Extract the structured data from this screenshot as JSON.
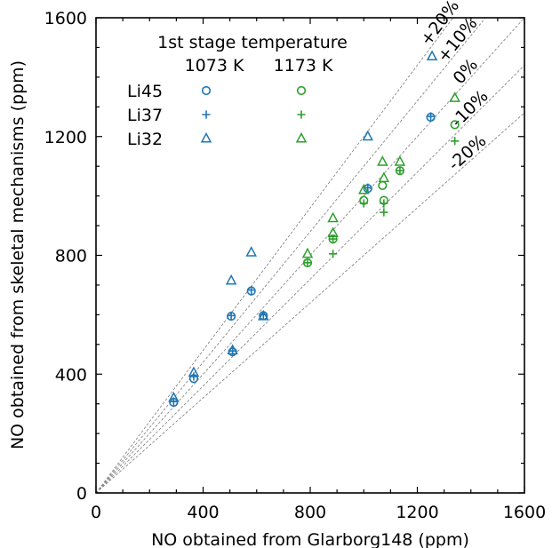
{
  "chart_data": {
    "type": "scatter",
    "xlabel": "NO obtained from Glarborg148 (ppm)",
    "ylabel": "NO obtained from skeletal mechanisms (ppm)",
    "xlim": [
      0,
      1600
    ],
    "ylim": [
      0,
      1600
    ],
    "xticks": [
      0,
      400,
      800,
      1200,
      1600
    ],
    "yticks": [
      0,
      400,
      800,
      1200,
      1600
    ],
    "minor_tick_step": 100,
    "grid": false,
    "legend": {
      "placement": "top-left",
      "title": "1st stage temperature",
      "column_headers": [
        "1073 K",
        "1173 K"
      ],
      "row_labels": [
        "Li45",
        "Li37",
        "Li32"
      ]
    },
    "colors": {
      "1073 K": "#1f77b4",
      "1173 K": "#2ca02c"
    },
    "reference_lines": [
      {
        "label": "+20%",
        "slope": 1.2
      },
      {
        "label": "+10%",
        "slope": 1.1
      },
      {
        "label": "0%",
        "slope": 1.0
      },
      {
        "label": "-10%",
        "slope": 0.9
      },
      {
        "label": "-20%",
        "slope": 0.8
      }
    ],
    "series": [
      {
        "name": "Li45",
        "temperature": "1073 K",
        "marker": "circle",
        "color": "#1f77b4",
        "points": [
          [
            290,
            305
          ],
          [
            365,
            385
          ],
          [
            505,
            595
          ],
          [
            510,
            475
          ],
          [
            580,
            680
          ],
          [
            625,
            597
          ],
          [
            1015,
            1025
          ],
          [
            1250,
            1265
          ]
        ]
      },
      {
        "name": "Li37",
        "temperature": "1073 K",
        "marker": "plus",
        "color": "#1f77b4",
        "points": [
          [
            290,
            308
          ],
          [
            365,
            392
          ],
          [
            505,
            597
          ],
          [
            510,
            478
          ],
          [
            580,
            683
          ],
          [
            625,
            600
          ],
          [
            1015,
            1028
          ],
          [
            1250,
            1268
          ]
        ]
      },
      {
        "name": "Li32",
        "temperature": "1073 K",
        "marker": "triangle",
        "color": "#1f77b4",
        "points": [
          [
            290,
            320
          ],
          [
            365,
            405
          ],
          [
            505,
            715
          ],
          [
            510,
            480
          ],
          [
            580,
            810
          ],
          [
            625,
            595
          ],
          [
            1015,
            1200
          ],
          [
            1255,
            1470
          ]
        ]
      },
      {
        "name": "Li45",
        "temperature": "1173 K",
        "marker": "circle",
        "color": "#2ca02c",
        "points": [
          [
            790,
            775
          ],
          [
            885,
            855
          ],
          [
            1000,
            985
          ],
          [
            1070,
            1035
          ],
          [
            1075,
            985
          ],
          [
            1135,
            1085
          ],
          [
            1340,
            1240
          ]
        ]
      },
      {
        "name": "Li37",
        "temperature": "1173 K",
        "marker": "plus",
        "color": "#2ca02c",
        "points": [
          [
            790,
            775
          ],
          [
            885,
            805
          ],
          [
            885,
            855
          ],
          [
            1000,
            975
          ],
          [
            1075,
            945
          ],
          [
            1075,
            975
          ],
          [
            1135,
            1085
          ],
          [
            1340,
            1185
          ]
        ]
      },
      {
        "name": "Li32",
        "temperature": "1173 K",
        "marker": "triangle",
        "color": "#2ca02c",
        "points": [
          [
            790,
            805
          ],
          [
            885,
            925
          ],
          [
            885,
            875
          ],
          [
            1000,
            1020
          ],
          [
            1070,
            1115
          ],
          [
            1075,
            1060
          ],
          [
            1135,
            1115
          ],
          [
            1340,
            1330
          ]
        ]
      }
    ]
  }
}
